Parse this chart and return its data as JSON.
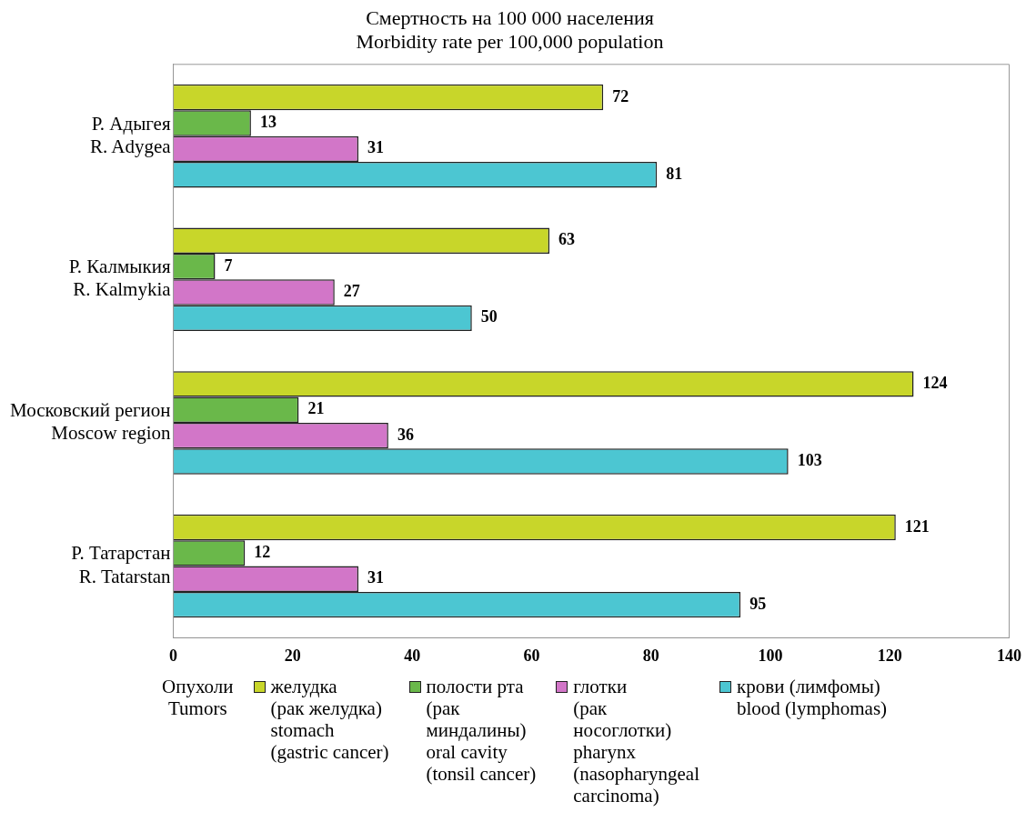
{
  "chart_data": {
    "type": "bar",
    "orientation": "horizontal",
    "title": "Смертность на 100 000 населения\nMorbidity rate per 100,000 population",
    "categories": [
      "Р. Адыгея\nR. Adygea",
      "Р. Калмыкия\nR. Kalmykia",
      "Московский регион\nMoscow region",
      "Р. Татарстан\nR. Tatarstan"
    ],
    "series": [
      {
        "name": "желудка\n(рак желудка)\nstomach\n(gastric cancer)",
        "color": "#c8d62a",
        "values": [
          72,
          63,
          124,
          121
        ]
      },
      {
        "name": "полости рта\n(рак\nминдалины)\noral cavity\n(tonsil cancer)",
        "color": "#6ab84a",
        "values": [
          13,
          7,
          21,
          12
        ]
      },
      {
        "name": "глотки\n(рак\nносоглотки)\npharynx\n(nasopharyngeal\ncarcinoma)",
        "color": "#d276c8",
        "values": [
          31,
          27,
          36,
          31
        ]
      },
      {
        "name": "крови (лимфомы)\nblood (lymphomas)",
        "color": "#4cc6d2",
        "values": [
          81,
          50,
          103,
          95
        ]
      }
    ],
    "xlim": [
      0,
      140
    ],
    "xticks": [
      0,
      20,
      40,
      60,
      80,
      100,
      120,
      140
    ],
    "grid": false,
    "legend": "bottom",
    "legend_title": "Опухоли\nTumors",
    "data_labels": true
  }
}
